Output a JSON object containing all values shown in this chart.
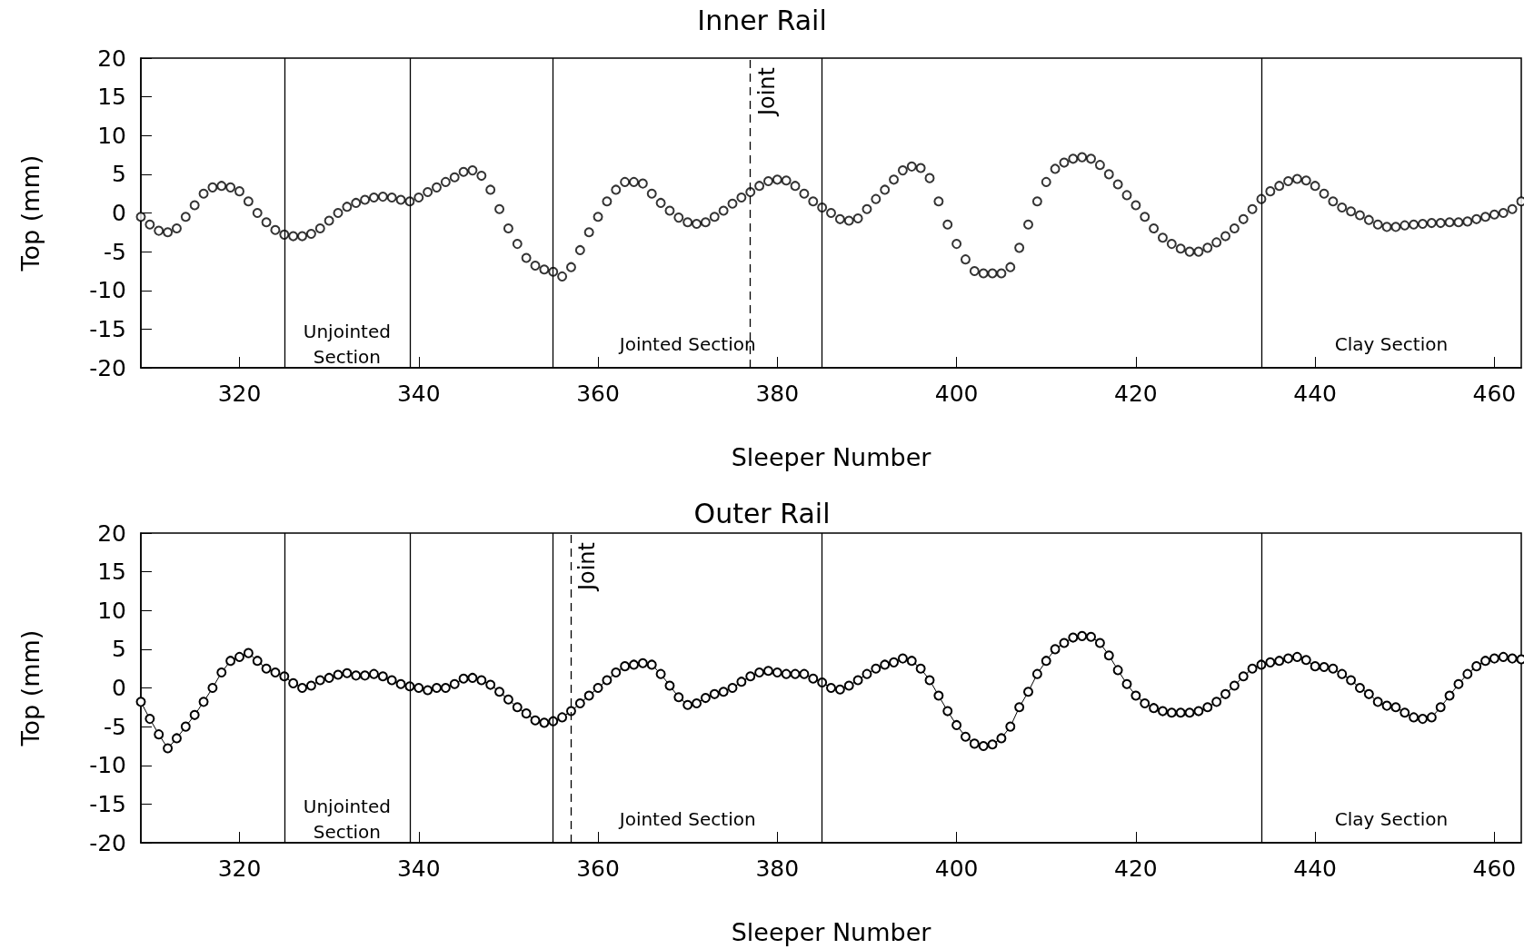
{
  "chart_data": [
    {
      "type": "scatter",
      "title": "Inner Rail",
      "xlabel": "Sleeper Number",
      "ylabel": "Top (mm)",
      "marker": "circle",
      "grid": false,
      "x": [
        309,
        310,
        311,
        312,
        313,
        314,
        315,
        316,
        317,
        318,
        319,
        320,
        321,
        322,
        323,
        324,
        325,
        326,
        327,
        328,
        329,
        330,
        331,
        332,
        333,
        334,
        335,
        336,
        337,
        338,
        339,
        340,
        341,
        342,
        343,
        344,
        345,
        346,
        347,
        348,
        349,
        350,
        351,
        352,
        353,
        354,
        355,
        356,
        357,
        358,
        359,
        360,
        361,
        362,
        363,
        364,
        365,
        366,
        367,
        368,
        369,
        370,
        371,
        372,
        373,
        374,
        375,
        376,
        377,
        378,
        379,
        380,
        381,
        382,
        383,
        384,
        385,
        386,
        387,
        388,
        389,
        390,
        391,
        392,
        393,
        394,
        395,
        396,
        397,
        398,
        399,
        400,
        401,
        402,
        403,
        404,
        405,
        406,
        407,
        408,
        409,
        410,
        411,
        412,
        413,
        414,
        415,
        416,
        417,
        418,
        419,
        420,
        421,
        422,
        423,
        424,
        425,
        426,
        427,
        428,
        429,
        430,
        431,
        432,
        433,
        434,
        435,
        436,
        437,
        438,
        439,
        440,
        441,
        442,
        443,
        444,
        445,
        446,
        447,
        448,
        449,
        450,
        451,
        452,
        453,
        454,
        455,
        456,
        457,
        458,
        459,
        460,
        461,
        462,
        463
      ],
      "series": [
        {
          "color": "#000000",
          "values": [
            -0.5,
            -1.5,
            -2.3,
            -2.5,
            -2,
            -0.5,
            1,
            2.5,
            3.3,
            3.5,
            3.3,
            2.8,
            1.5,
            0,
            -1.2,
            -2.2,
            -2.8,
            -3,
            -3,
            -2.7,
            -2,
            -1,
            0,
            0.8,
            1.3,
            1.7,
            2,
            2.1,
            2,
            1.7,
            1.5,
            2,
            2.7,
            3.3,
            4,
            4.6,
            5.3,
            5.5,
            4.8,
            3,
            0.5,
            -2,
            -4,
            -5.8,
            -6.8,
            -7.3,
            -7.6,
            -8.2,
            -7,
            -4.8,
            -2.5,
            -0.5,
            1.5,
            3,
            4,
            4,
            3.8,
            2.5,
            1.3,
            0.3,
            -0.6,
            -1.2,
            -1.4,
            -1.2,
            -0.5,
            0.3,
            1.2,
            2,
            2.7,
            3.5,
            4.1,
            4.3,
            4.2,
            3.5,
            2.5,
            1.5,
            0.7,
            0,
            -0.8,
            -1,
            -0.7,
            0.5,
            1.8,
            3,
            4.3,
            5.5,
            6,
            5.8,
            4.5,
            1.5,
            -1.5,
            -4,
            -6,
            -7.5,
            -7.8,
            -7.8,
            -7.8,
            -7,
            -4.5,
            -1.5,
            1.5,
            4,
            5.7,
            6.5,
            7,
            7.2,
            7,
            6.2,
            5,
            3.7,
            2.3,
            1,
            -0.5,
            -2,
            -3.2,
            -4,
            -4.6,
            -5,
            -5,
            -4.5,
            -3.8,
            -3,
            -2,
            -0.8,
            0.5,
            1.8,
            2.8,
            3.5,
            4.1,
            4.4,
            4.2,
            3.5,
            2.5,
            1.5,
            0.7,
            0.2,
            -0.3,
            -0.9,
            -1.5,
            -1.8,
            -1.8,
            -1.6,
            -1.5,
            -1.4,
            -1.3,
            -1.3,
            -1.2,
            -1.2,
            -1.1,
            -0.8,
            -0.5,
            -0.2,
            0,
            0.5,
            1.5
          ]
        }
      ],
      "xlim": [
        309,
        463
      ],
      "xticks": [
        320,
        340,
        360,
        380,
        400,
        420,
        440,
        460
      ],
      "ylim": [
        -20,
        20
      ],
      "yticks": [
        -20,
        -15,
        -10,
        -5,
        0,
        5,
        10,
        15,
        20
      ],
      "ref_lines": [
        {
          "axis": "x",
          "value": 325,
          "label": null,
          "color": "#000000",
          "line_style": "solid"
        },
        {
          "axis": "x",
          "value": 339,
          "label": null,
          "color": "#000000",
          "line_style": "solid"
        },
        {
          "axis": "x",
          "value": 355,
          "label": null,
          "color": "#000000",
          "line_style": "solid"
        },
        {
          "axis": "x",
          "value": 377,
          "label": "Joint",
          "color": "#000000",
          "line_style": "dashed"
        },
        {
          "axis": "x",
          "value": 385,
          "label": null,
          "color": "#000000",
          "line_style": "solid"
        },
        {
          "axis": "x",
          "value": 434,
          "label": null,
          "color": "#000000",
          "line_style": "solid"
        }
      ],
      "annotations": [
        "Unjointed\nSection",
        "Jointed Section",
        "Clay Section"
      ]
    },
    {
      "type": "line",
      "title": "Outer Rail",
      "xlabel": "Sleeper Number",
      "ylabel": "Top (mm)",
      "marker": "circle",
      "grid": false,
      "x": [
        309,
        310,
        311,
        312,
        313,
        314,
        315,
        316,
        317,
        318,
        319,
        320,
        321,
        322,
        323,
        324,
        325,
        326,
        327,
        328,
        329,
        330,
        331,
        332,
        333,
        334,
        335,
        336,
        337,
        338,
        339,
        340,
        341,
        342,
        343,
        344,
        345,
        346,
        347,
        348,
        349,
        350,
        351,
        352,
        353,
        354,
        355,
        356,
        357,
        358,
        359,
        360,
        361,
        362,
        363,
        364,
        365,
        366,
        367,
        368,
        369,
        370,
        371,
        372,
        373,
        374,
        375,
        376,
        377,
        378,
        379,
        380,
        381,
        382,
        383,
        384,
        385,
        386,
        387,
        388,
        389,
        390,
        391,
        392,
        393,
        394,
        395,
        396,
        397,
        398,
        399,
        400,
        401,
        402,
        403,
        404,
        405,
        406,
        407,
        408,
        409,
        410,
        411,
        412,
        413,
        414,
        415,
        416,
        417,
        418,
        419,
        420,
        421,
        422,
        423,
        424,
        425,
        426,
        427,
        428,
        429,
        430,
        431,
        432,
        433,
        434,
        435,
        436,
        437,
        438,
        439,
        440,
        441,
        442,
        443,
        444,
        445,
        446,
        447,
        448,
        449,
        450,
        451,
        452,
        453,
        454,
        455,
        456,
        457,
        458,
        459,
        460,
        461,
        462,
        463
      ],
      "series": [
        {
          "color": "#000000",
          "values": [
            -1.8,
            -4,
            -6,
            -7.8,
            -6.5,
            -5,
            -3.5,
            -1.8,
            0,
            2,
            3.5,
            4,
            4.5,
            3.5,
            2.5,
            2,
            1.5,
            0.6,
            0,
            0.3,
            1,
            1.3,
            1.7,
            1.9,
            1.6,
            1.6,
            1.8,
            1.5,
            1,
            0.5,
            0.2,
            0,
            -0.3,
            0,
            0,
            0.5,
            1.2,
            1.3,
            1,
            0.4,
            -0.5,
            -1.5,
            -2.5,
            -3.3,
            -4.2,
            -4.5,
            -4.3,
            -3.8,
            -3,
            -2,
            -1,
            0,
            1,
            2,
            2.8,
            3,
            3.2,
            3,
            1.8,
            0.3,
            -1.2,
            -2.2,
            -2,
            -1.3,
            -0.8,
            -0.5,
            0,
            0.8,
            1.5,
            2,
            2.2,
            2,
            1.8,
            1.8,
            1.8,
            1.2,
            0.7,
            0,
            -0.2,
            0.3,
            1,
            1.8,
            2.5,
            3,
            3.3,
            3.8,
            3.5,
            2.5,
            1,
            -1,
            -3,
            -4.8,
            -6.3,
            -7.2,
            -7.5,
            -7.3,
            -6.5,
            -5,
            -2.5,
            -0.5,
            1.8,
            3.5,
            5,
            5.8,
            6.5,
            6.7,
            6.6,
            5.8,
            4.2,
            2.3,
            0.5,
            -1,
            -2,
            -2.6,
            -3,
            -3.2,
            -3.2,
            -3.2,
            -3,
            -2.5,
            -1.8,
            -0.8,
            0.3,
            1.5,
            2.5,
            3,
            3.3,
            3.5,
            3.8,
            4,
            3.6,
            2.8,
            2.7,
            2.5,
            1.8,
            1,
            0,
            -0.8,
            -1.8,
            -2.3,
            -2.5,
            -3.2,
            -3.8,
            -4,
            -3.8,
            -2.5,
            -1,
            0.5,
            1.8,
            2.8,
            3.5,
            3.8,
            4,
            3.8,
            3.7
          ]
        }
      ],
      "xlim": [
        309,
        463
      ],
      "xticks": [
        320,
        340,
        360,
        380,
        400,
        420,
        440,
        460
      ],
      "ylim": [
        -20,
        20
      ],
      "yticks": [
        -20,
        -15,
        -10,
        -5,
        0,
        5,
        10,
        15,
        20
      ],
      "ref_lines": [
        {
          "axis": "x",
          "value": 325,
          "label": null,
          "color": "#000000",
          "line_style": "solid"
        },
        {
          "axis": "x",
          "value": 339,
          "label": null,
          "color": "#000000",
          "line_style": "solid"
        },
        {
          "axis": "x",
          "value": 355,
          "label": null,
          "color": "#000000",
          "line_style": "solid"
        },
        {
          "axis": "x",
          "value": 357,
          "label": "Joint",
          "color": "#000000",
          "line_style": "dashed"
        },
        {
          "axis": "x",
          "value": 385,
          "label": null,
          "color": "#000000",
          "line_style": "solid"
        },
        {
          "axis": "x",
          "value": 434,
          "label": null,
          "color": "#000000",
          "line_style": "solid"
        }
      ],
      "annotations": [
        "Unjointed\nSection",
        "Jointed Section",
        "Clay Section"
      ]
    }
  ]
}
